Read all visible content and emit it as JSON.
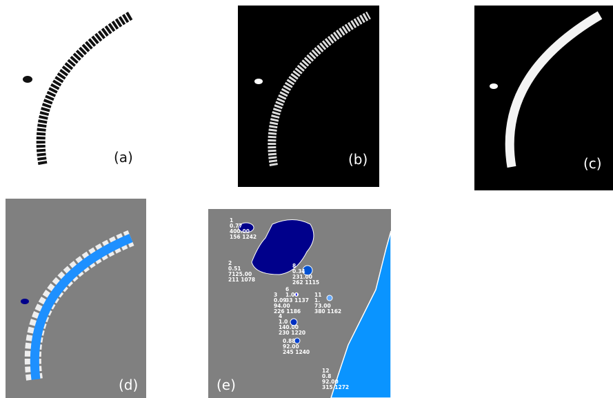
{
  "panels": [
    {
      "label": "(a)"
    },
    {
      "label": "(b)"
    },
    {
      "label": "(c)"
    },
    {
      "label": "(d)"
    },
    {
      "label": "(e)",
      "regions": [
        {
          "lines": [
            "1",
            "0.77",
            "400.00",
            "156 1242"
          ]
        },
        {
          "lines": [
            "2",
            "0.51",
            "7125.00",
            "211 1078"
          ]
        },
        {
          "lines": [
            "8",
            "0.34",
            "231.00",
            "262 1115"
          ]
        },
        {
          "lines": [
            "6",
            "1.00",
            "33 1137"
          ]
        },
        {
          "lines": [
            "3",
            "0.09",
            "94.00",
            "226 1186"
          ]
        },
        {
          "lines": [
            "11",
            "1.",
            "73.00",
            "380 1162"
          ]
        },
        {
          "lines": [
            "4",
            "1.0",
            "140.00",
            "230 1220"
          ]
        },
        {
          "lines": [
            "0.88",
            "92.00",
            "245 1240"
          ]
        },
        {
          "lines": [
            "12",
            "0.8",
            "92.00",
            "315 1272"
          ]
        }
      ]
    }
  ]
}
